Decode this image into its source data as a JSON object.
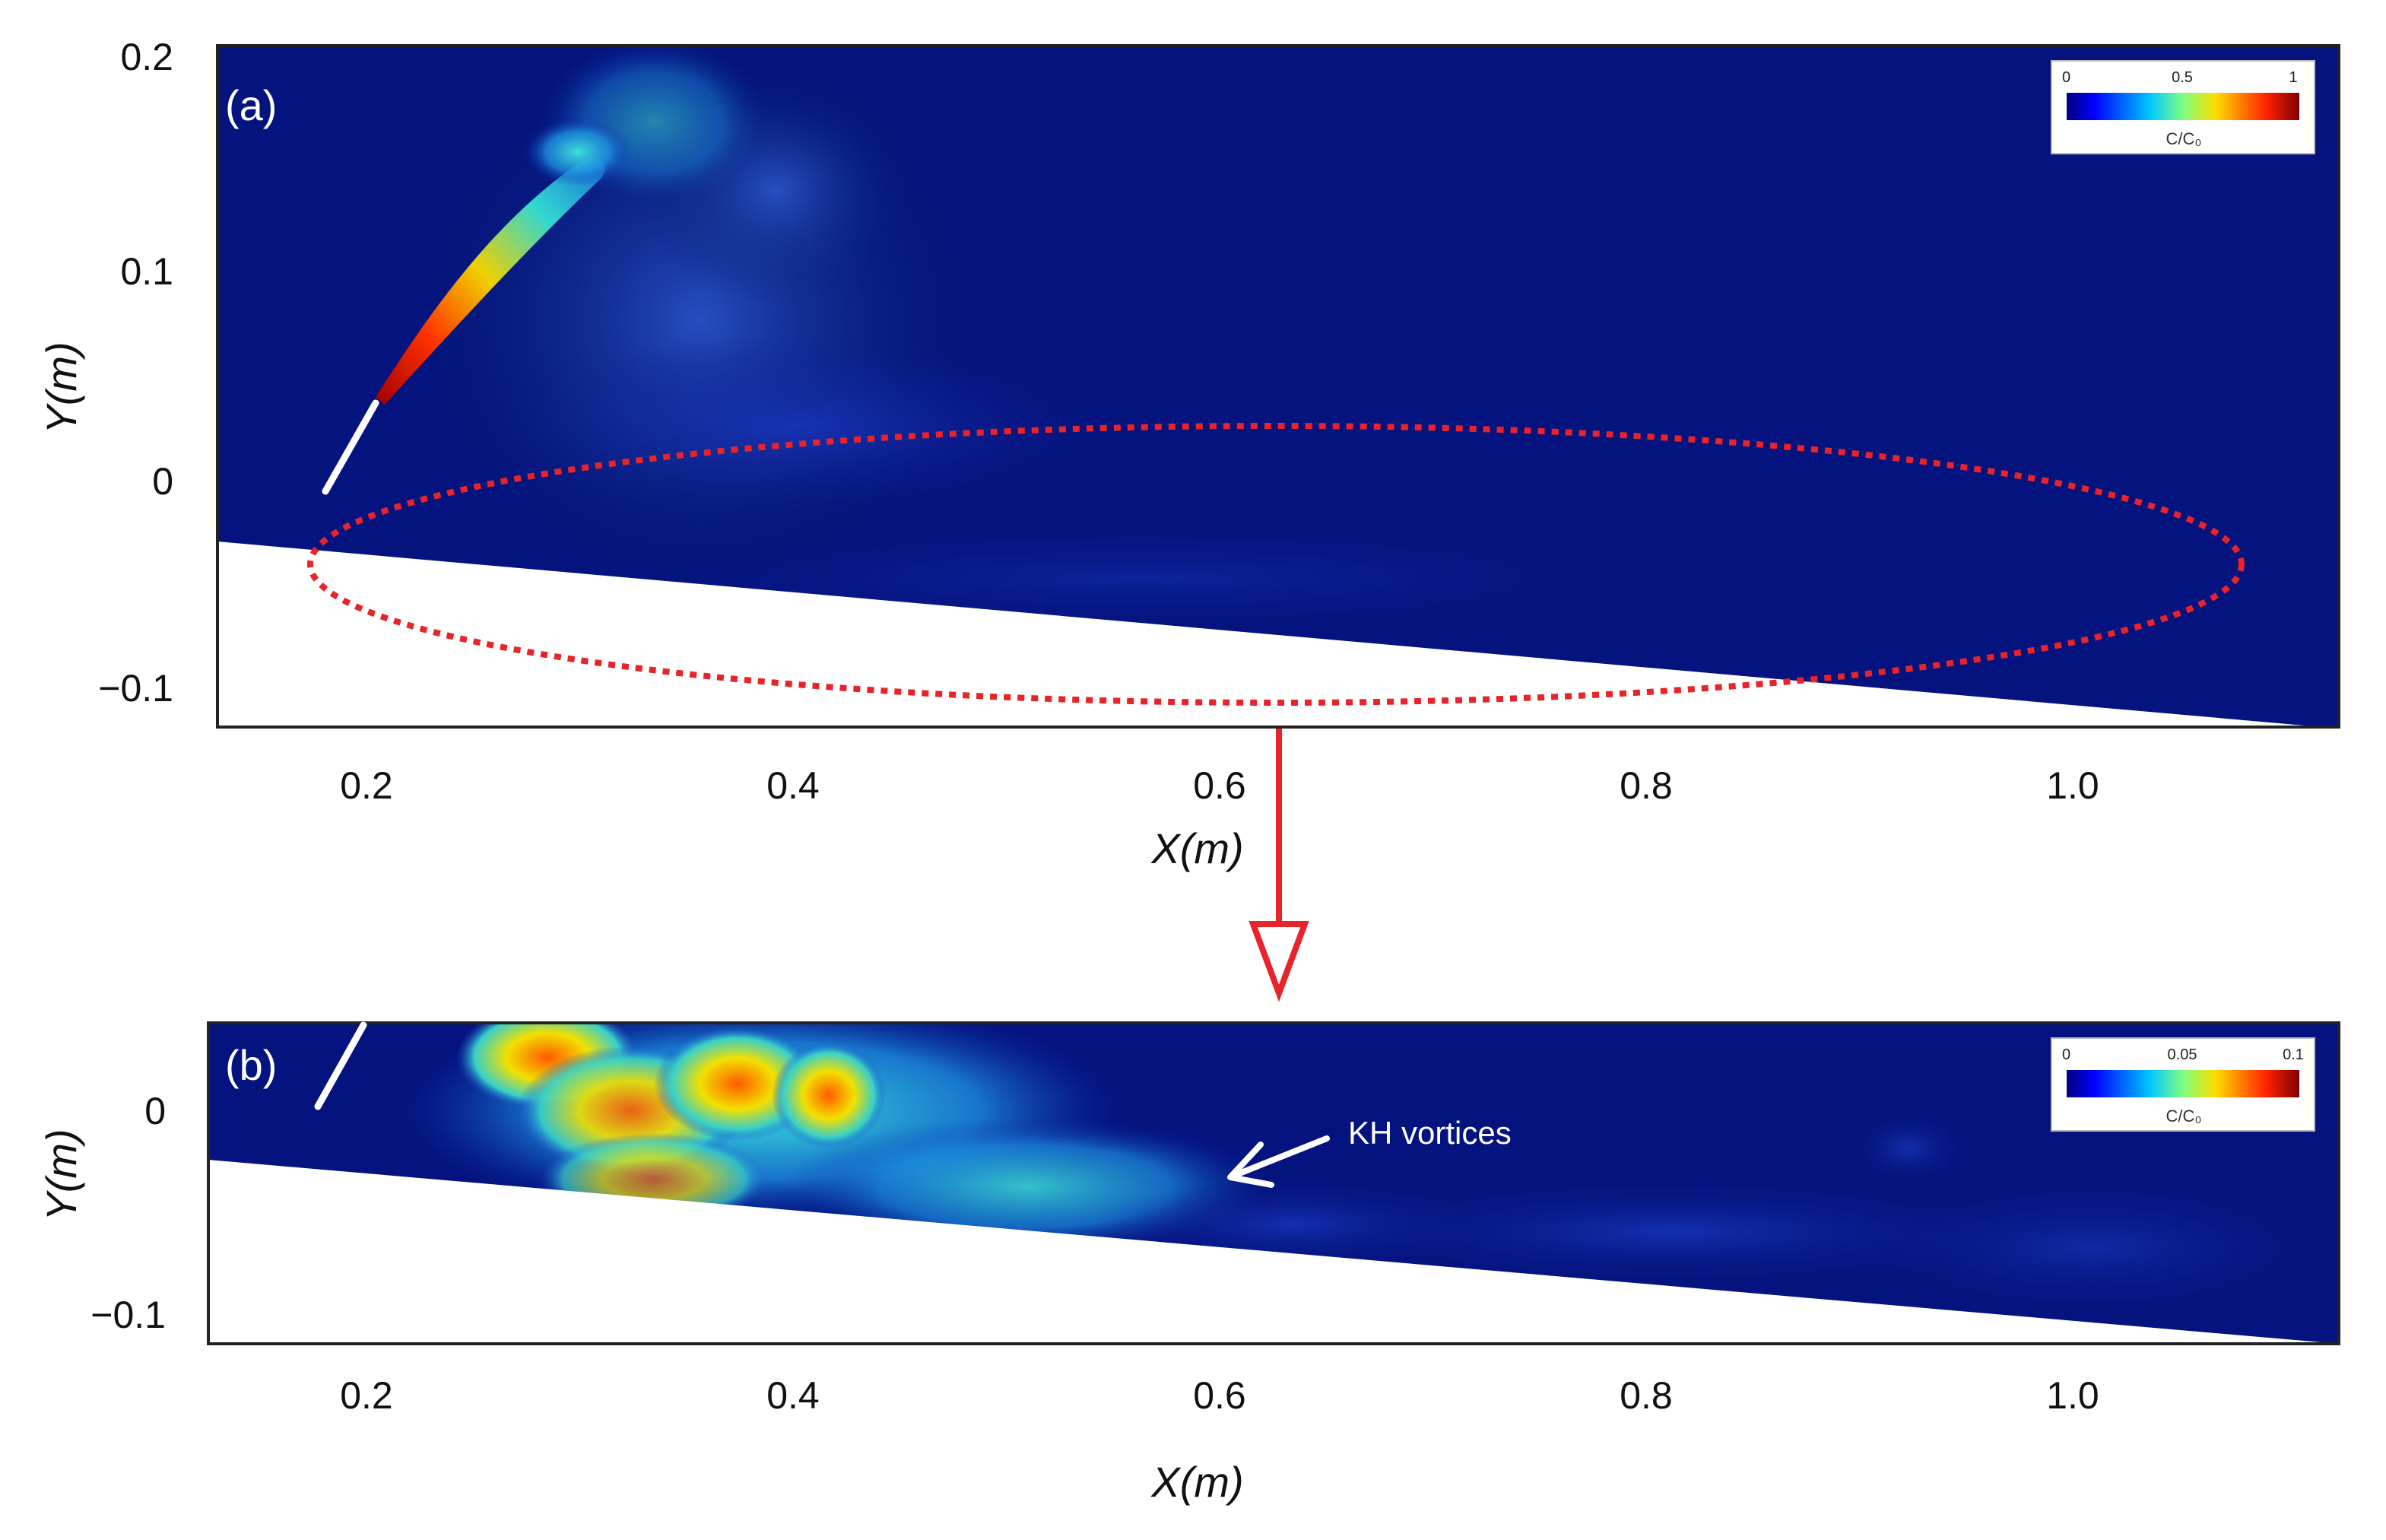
{
  "chart_data": [
    {
      "type": "heatmap",
      "panel_label": "(a)",
      "xlabel": "X(m)",
      "ylabel": "Y(m)",
      "xlim": [
        0.13,
        1.125
      ],
      "ylim": [
        -0.12,
        0.205
      ],
      "x_ticks": [
        0.2,
        0.4,
        0.6,
        0.8,
        1.0
      ],
      "x_tick_labels": [
        "0.2",
        "0.4",
        "0.6",
        "0.8",
        "1.0"
      ],
      "y_ticks": [
        0.2,
        0.1,
        0.0,
        -0.1
      ],
      "y_tick_labels": [
        "0.2",
        "0.1",
        "0",
        "−0.1"
      ],
      "colorbar": {
        "label": "C/C₀",
        "range": [
          0,
          1
        ],
        "ticks": [
          0,
          0.5,
          1
        ],
        "tick_labels": [
          "0",
          "0.5",
          "1"
        ],
        "colormap": "jet"
      },
      "slope_boundary": {
        "x": [
          0.13,
          1.125
        ],
        "y": [
          -0.028,
          -0.12
        ]
      },
      "nozzle": {
        "x": [
          0.178,
          0.207
        ],
        "y": [
          0.004,
          0.043
        ]
      },
      "jet_trajectory": {
        "x": [
          0.207,
          0.23,
          0.26,
          0.29,
          0.32
        ],
        "y": [
          0.043,
          0.085,
          0.12,
          0.145,
          0.16
        ]
      },
      "highlight_ellipse": {
        "center": [
          0.628,
          -0.04
        ],
        "semi_axes": [
          0.455,
          0.066
        ],
        "style": "dotted",
        "color": "#e8232a"
      }
    },
    {
      "type": "heatmap",
      "panel_label": "(b)",
      "xlabel": "X(m)",
      "ylabel": "Y(m)",
      "xlim": [
        0.13,
        1.125
      ],
      "ylim": [
        -0.12,
        0.045
      ],
      "x_ticks": [
        0.2,
        0.4,
        0.6,
        0.8,
        1.0
      ],
      "x_tick_labels": [
        "0.2",
        "0.4",
        "0.6",
        "0.8",
        "1.0"
      ],
      "y_ticks": [
        0.0,
        -0.1
      ],
      "y_tick_labels": [
        "0",
        "−0.1"
      ],
      "colorbar": {
        "label": "C/C₀",
        "range": [
          0,
          0.1
        ],
        "ticks": [
          0,
          0.05,
          0.1
        ],
        "tick_labels": [
          "0",
          "0.05",
          "0.1"
        ],
        "colormap": "jet"
      },
      "slope_boundary": {
        "x": [
          0.13,
          1.125
        ],
        "y": [
          -0.028,
          -0.12
        ]
      },
      "nozzle": {
        "x": [
          0.178,
          0.2
        ],
        "y": [
          0.002,
          0.045
        ]
      },
      "annotation": {
        "text": "KH vortices",
        "arrow_tip": [
          0.6,
          -0.03
        ]
      }
    }
  ],
  "connector": {
    "color": "#e8232a"
  }
}
